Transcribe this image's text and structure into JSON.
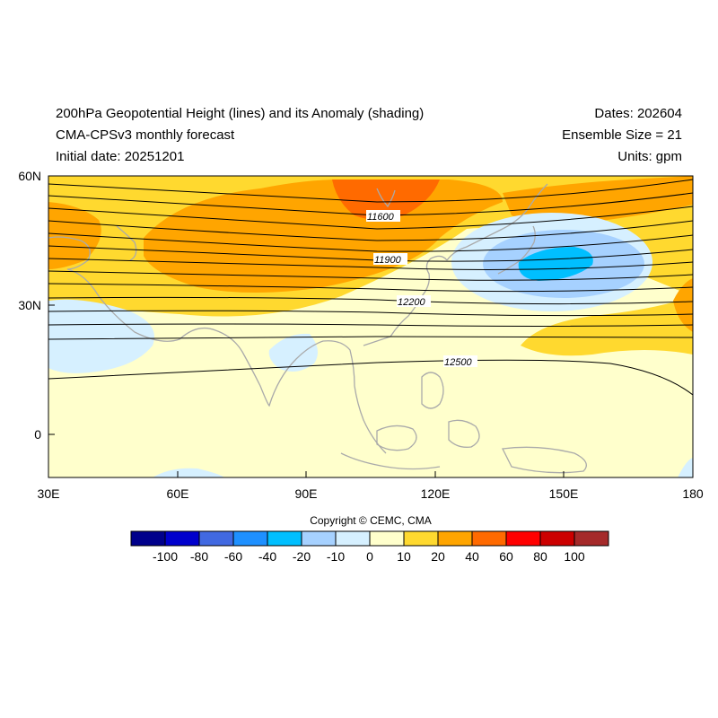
{
  "header": {
    "title": "200hPa Geopotential Height (lines) and its Anomaly (shading)",
    "model": "CMA-CPSv3 monthly forecast",
    "initial_date": "Initial date: 20251201",
    "dates": "Dates: 202604",
    "ensemble": "Ensemble Size = 21",
    "units": "Units: gpm"
  },
  "map": {
    "lon_ticks": [
      "30E",
      "60E",
      "90E",
      "120E",
      "150E",
      "180"
    ],
    "lat_ticks": [
      "60N",
      "30N",
      "0"
    ],
    "contour_labels": [
      "11600",
      "11900",
      "12200",
      "12500"
    ],
    "coastline_color": "#aaaaaa",
    "contour_color": "#000000"
  },
  "copyright": "Copyright © CEMC, CMA",
  "colorbar": {
    "labels": [
      "-100",
      "-80",
      "-60",
      "-40",
      "-20",
      "-10",
      "0",
      "10",
      "20",
      "40",
      "60",
      "80",
      "100"
    ],
    "colors": [
      "#00008b",
      "#0000cd",
      "#4169e1",
      "#1e90ff",
      "#00bfff",
      "#a6d1ff",
      "#d6f0ff",
      "#ffffcc",
      "#ffd92f",
      "#ffa500",
      "#ff6a00",
      "#ff0000",
      "#cc0000",
      "#a52a2a"
    ]
  }
}
